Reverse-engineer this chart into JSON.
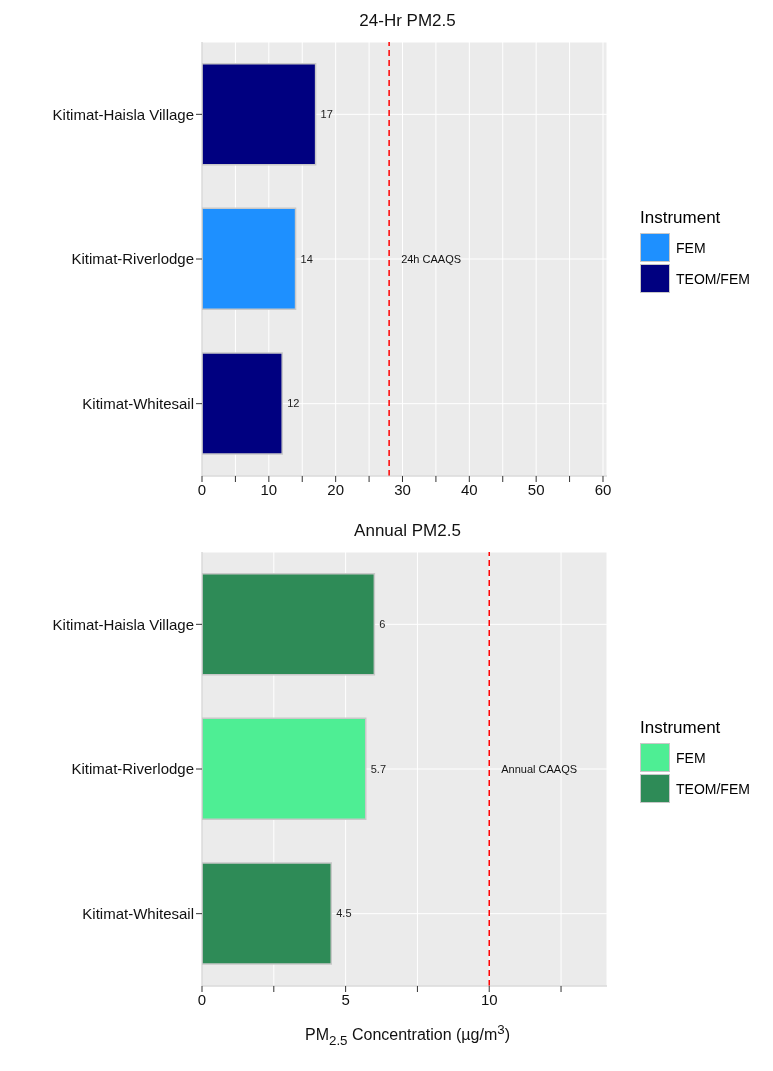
{
  "chart_data": [
    {
      "type": "bar",
      "orientation": "horizontal",
      "stacked": true,
      "title": "24-Hr PM2.5",
      "categories": [
        "Kitimat-Haisla Village",
        "Kitimat-Riverlodge",
        "Kitimat-Whitesail"
      ],
      "series": [
        {
          "name": "FEM",
          "color": "#1e90ff",
          "values": [
            null,
            14,
            null
          ]
        },
        {
          "name": "TEOM/FEM",
          "color": "#000080",
          "values": [
            17,
            null,
            12
          ]
        }
      ],
      "xlim": [
        0,
        60.6
      ],
      "xticks": [
        0,
        {
          "value": 5,
          "label": null
        },
        10,
        {
          "value": 15,
          "label": null
        },
        20,
        {
          "value": 25,
          "label": null
        },
        30,
        {
          "value": 35,
          "label": null
        },
        40,
        {
          "value": 45,
          "label": null
        },
        50,
        {
          "value": 55,
          "label": null
        },
        60
      ],
      "grid": true,
      "legend": "right",
      "legend_title": "Instrument",
      "data_labels": true,
      "ref_lines": [
        {
          "axis": "x",
          "value": 28,
          "label": "24h CAAQS",
          "color": "#ff0000",
          "line_style": "dashed"
        }
      ]
    },
    {
      "type": "bar",
      "orientation": "horizontal",
      "stacked": true,
      "title": "Annual PM2.5",
      "xlabel": "PM$_{2.5}$ Concentration (µg/m$^{3}$)",
      "categories": [
        "Kitimat-Haisla Village",
        "Kitimat-Riverlodge",
        "Kitimat-Whitesail"
      ],
      "series": [
        {
          "name": "FEM",
          "color": "#4eee94",
          "values": [
            null,
            5.7,
            null
          ]
        },
        {
          "name": "TEOM/FEM",
          "color": "#2e8b57",
          "values": [
            6,
            null,
            4.5
          ]
        }
      ],
      "xlim": [
        0,
        14.1
      ],
      "xticks": [
        0,
        {
          "value": 2.5,
          "label": null
        },
        5,
        {
          "value": 7.5,
          "label": null
        },
        10,
        {
          "value": 12.5,
          "label": null
        }
      ],
      "grid": true,
      "legend": "right",
      "legend_title": "Instrument",
      "data_labels": true,
      "ref_lines": [
        {
          "axis": "x",
          "value": 10,
          "label": "Annual CAAQS",
          "color": "#ff0000",
          "line_style": "dashed"
        }
      ]
    }
  ]
}
